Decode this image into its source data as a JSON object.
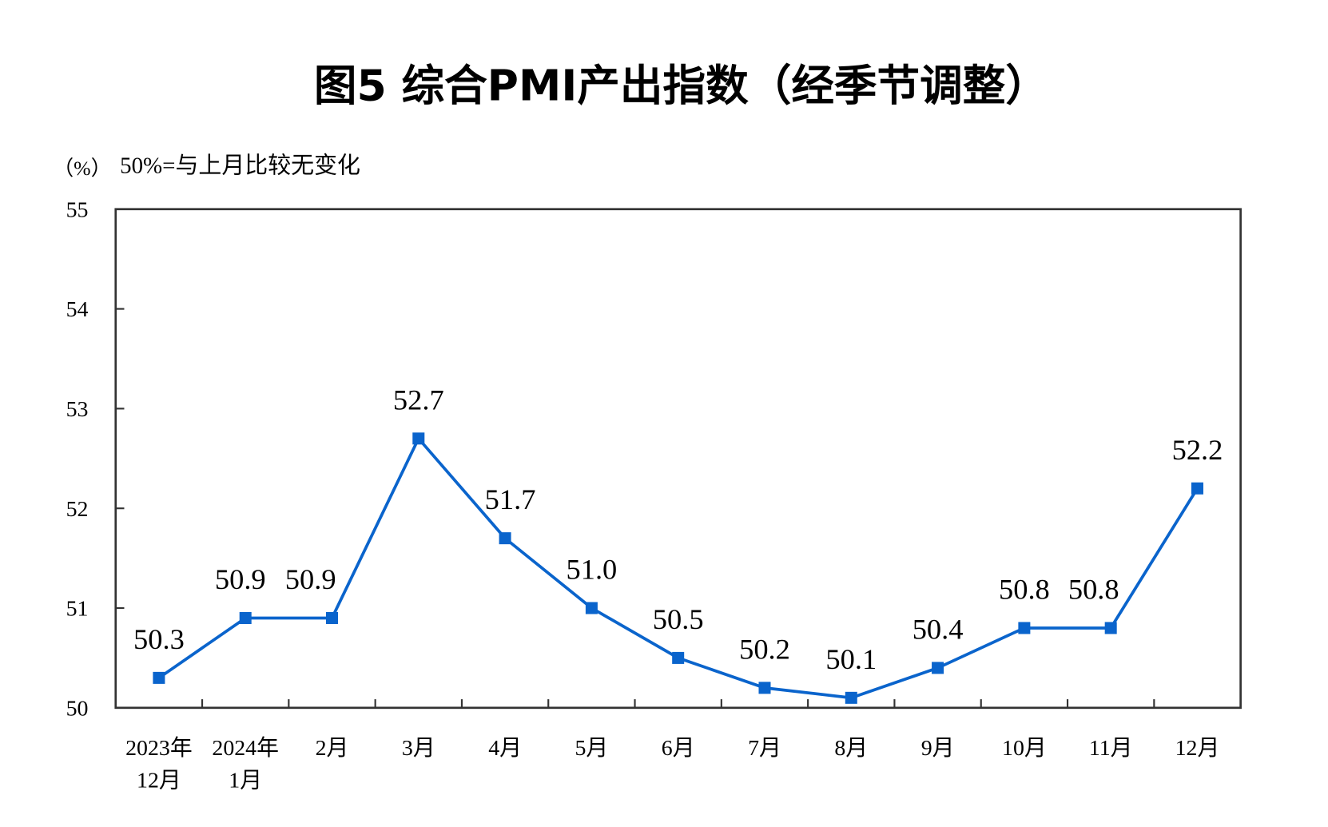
{
  "chart_data": {
    "type": "line",
    "title": "图5  综合PMI产出指数（经季节调整）",
    "ylabel": "（%）",
    "annotation": "50%=与上月比较无变化",
    "ylim": [
      50,
      55
    ],
    "yticks": [
      "50",
      "51",
      "52",
      "53",
      "54",
      "55"
    ],
    "categories": [
      [
        "2023年",
        "12月"
      ],
      [
        "2024年",
        "1月"
      ],
      [
        "2月"
      ],
      [
        "3月"
      ],
      [
        "4月"
      ],
      [
        "5月"
      ],
      [
        "6月"
      ],
      [
        "7月"
      ],
      [
        "8月"
      ],
      [
        "9月"
      ],
      [
        "10月"
      ],
      [
        "11月"
      ],
      [
        "12月"
      ]
    ],
    "values": [
      50.3,
      50.9,
      50.9,
      52.7,
      51.7,
      51.0,
      50.5,
      50.2,
      50.1,
      50.4,
      50.8,
      50.8,
      52.2
    ],
    "data_labels": [
      "50.3",
      "50.9",
      "50.9",
      "52.7",
      "51.7",
      "51.0",
      "50.5",
      "50.2",
      "50.1",
      "50.4",
      "50.8",
      "50.8",
      "52.2"
    ],
    "grid": false,
    "colors": {
      "line": "#0a64cc",
      "axis": "#333333"
    }
  }
}
